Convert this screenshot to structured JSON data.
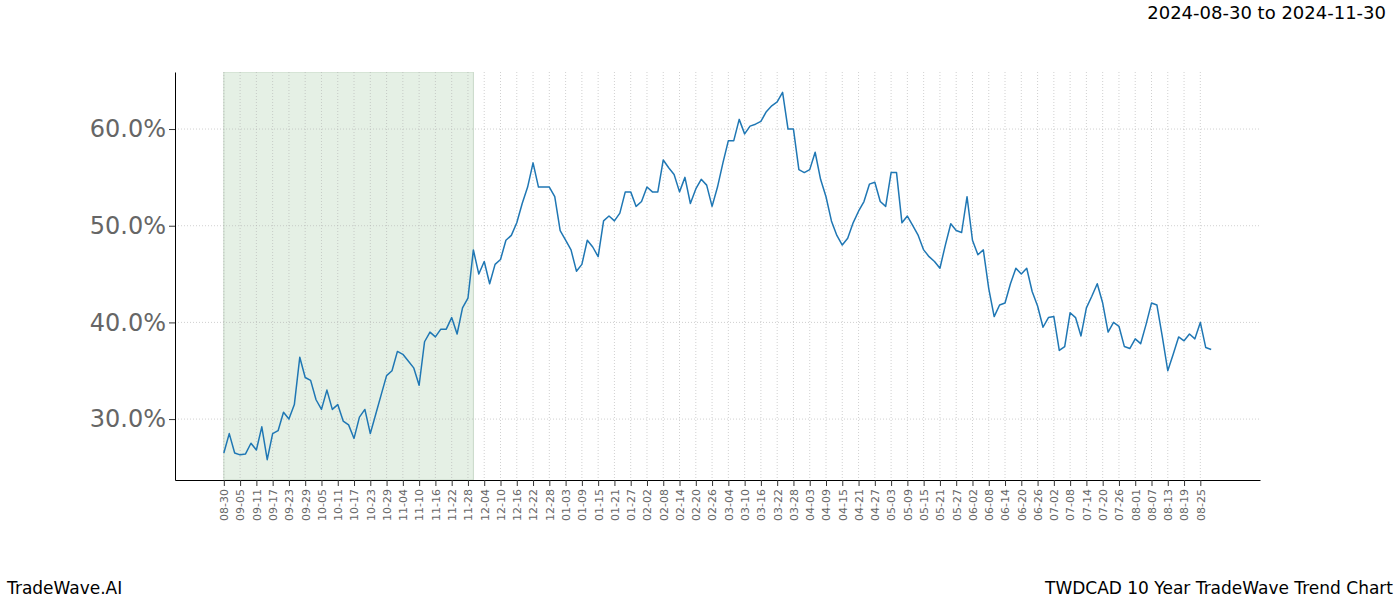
{
  "chart_data": {
    "type": "line",
    "title": "2024-08-30 to 2024-11-30",
    "annotations": [
      "TradeWave.AI",
      "TWDCAD 10 Year TradeWave Trend Chart"
    ],
    "color": "#1f77b4",
    "grid": true,
    "highlight_range": [
      0,
      46
    ],
    "xlim": [
      -9,
      191
    ],
    "ylim": [
      23.7,
      65.9
    ],
    "yticks": [
      {
        "value": 30,
        "label": "30.0%"
      },
      {
        "value": 40,
        "label": "40.0%"
      },
      {
        "value": 50,
        "label": "50.0%"
      },
      {
        "value": 60,
        "label": "60.0%"
      }
    ],
    "categories": [
      "08-30",
      null,
      null,
      "09-05",
      null,
      null,
      "09-11",
      null,
      null,
      "09-17",
      null,
      null,
      "09-23",
      null,
      null,
      "09-29",
      null,
      null,
      "10-05",
      null,
      null,
      "10-11",
      null,
      null,
      "10-17",
      null,
      null,
      "10-23",
      null,
      null,
      "10-29",
      null,
      null,
      "11-04",
      null,
      null,
      "11-10",
      null,
      null,
      "11-16",
      null,
      null,
      "11-22",
      null,
      null,
      "11-28",
      null,
      null,
      "12-04",
      null,
      null,
      "12-10",
      null,
      null,
      "12-16",
      null,
      null,
      "12-22",
      null,
      null,
      "12-28",
      null,
      null,
      "01-03",
      null,
      null,
      "01-09",
      null,
      null,
      "01-15",
      null,
      null,
      "01-21",
      null,
      null,
      "01-27",
      null,
      null,
      "02-02",
      null,
      null,
      "02-08",
      null,
      null,
      "02-14",
      null,
      null,
      "02-20",
      null,
      null,
      "02-26",
      null,
      null,
      "03-04",
      null,
      null,
      "03-10",
      null,
      null,
      "03-16",
      null,
      null,
      "03-22",
      null,
      null,
      "03-28",
      null,
      null,
      "04-03",
      null,
      null,
      "04-09",
      null,
      null,
      "04-15",
      null,
      null,
      "04-21",
      null,
      null,
      "04-27",
      null,
      null,
      "05-03",
      null,
      null,
      "05-09",
      null,
      null,
      "05-15",
      null,
      null,
      "05-21",
      null,
      null,
      "05-27",
      null,
      null,
      "06-02",
      null,
      null,
      "06-08",
      null,
      null,
      "06-14",
      null,
      null,
      "06-20",
      null,
      null,
      "06-26",
      null,
      null,
      "07-02",
      null,
      null,
      "07-08",
      null,
      null,
      "07-14",
      null,
      null,
      "07-20",
      null,
      null,
      "07-26",
      null,
      null,
      "08-01",
      null,
      null,
      "08-07",
      null,
      null,
      "08-13",
      null,
      null,
      "08-19",
      null,
      null,
      "08-25",
      null,
      null
    ],
    "values": [
      26.5,
      28.5,
      26.5,
      26.3,
      26.4,
      27.5,
      26.8,
      29.2,
      25.8,
      28.5,
      28.8,
      30.7,
      30.0,
      31.5,
      36.4,
      34.3,
      34.0,
      32.0,
      31.0,
      33.0,
      31.0,
      31.5,
      29.8,
      29.4,
      28.0,
      30.2,
      31.0,
      28.5,
      30.5,
      32.5,
      34.5,
      35.0,
      37.0,
      36.7,
      36.0,
      35.3,
      33.5,
      38.0,
      39.0,
      38.5,
      39.3,
      39.3,
      40.5,
      38.8,
      41.5,
      42.5,
      47.5,
      45.0,
      46.3,
      44.0,
      46.0,
      46.5,
      48.5,
      49.0,
      50.3,
      52.3,
      54.0,
      56.5,
      54.0,
      54.0,
      54.0,
      53.0,
      49.5,
      48.5,
      47.5,
      45.3,
      46.0,
      48.5,
      47.8,
      46.8,
      50.5,
      51.0,
      50.5,
      51.3,
      53.5,
      53.5,
      52.0,
      52.5,
      54.0,
      53.5,
      53.5,
      56.8,
      56.0,
      55.3,
      53.5,
      55.0,
      52.3,
      53.8,
      54.8,
      54.2,
      52.0,
      54.0,
      56.5,
      58.8,
      58.8,
      61.0,
      59.5,
      60.3,
      60.5,
      60.8,
      61.8,
      62.4,
      62.8,
      63.8,
      60.0,
      60.0,
      55.8,
      55.5,
      55.8,
      57.6,
      54.8,
      53.0,
      50.5,
      49.0,
      48.0,
      48.7,
      50.3,
      51.5,
      52.5,
      54.3,
      54.5,
      52.5,
      52.0,
      55.5,
      55.5,
      50.3,
      51.0,
      50.0,
      49.0,
      47.5,
      46.8,
      46.3,
      45.6,
      48.0,
      50.2,
      49.5,
      49.3,
      53.0,
      48.5,
      47.0,
      47.5,
      43.5,
      40.6,
      41.8,
      42.0,
      44.0,
      45.6,
      45.0,
      45.6,
      43.2,
      41.7,
      39.5,
      40.5,
      40.6,
      37.1,
      37.5,
      41.0,
      40.5,
      38.6,
      41.5,
      42.7,
      44.0,
      42.0,
      39.0,
      40.0,
      39.6,
      37.5,
      37.3,
      38.3,
      37.8,
      39.8,
      42.0,
      41.8,
      38.5,
      35.0,
      36.7,
      38.5,
      38.1,
      38.8,
      38.3,
      40.0,
      37.4,
      37.2
    ]
  }
}
